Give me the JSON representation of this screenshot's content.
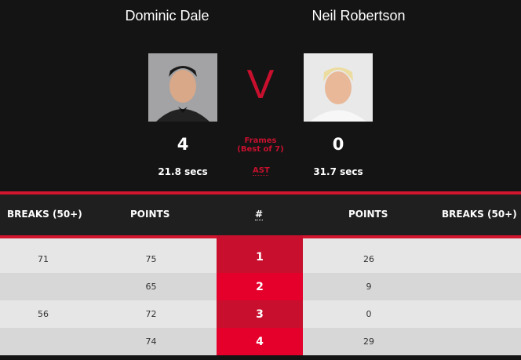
{
  "player1": {
    "name": "Dominic Dale",
    "score": "4",
    "avg_shot_time": "21.8 secs"
  },
  "player2": {
    "name": "Neil Robertson",
    "score": "0",
    "avg_shot_time": "31.7 secs"
  },
  "vs": "V",
  "frames_label": "Frames",
  "best_of": "(Best of 7)",
  "ast": "AST",
  "columns": [
    "BREAKS (50+)",
    "POINTS",
    "#",
    "POINTS",
    "BREAKS (50+)"
  ],
  "frames": [
    {
      "p1_breaks": "71",
      "p1_points": "75",
      "frame": "1",
      "p2_points": "26",
      "p2_breaks": ""
    },
    {
      "p1_breaks": "",
      "p1_points": "65",
      "frame": "2",
      "p2_points": "9",
      "p2_breaks": ""
    },
    {
      "p1_breaks": "56",
      "p1_points": "72",
      "frame": "3",
      "p2_points": "0",
      "p2_breaks": ""
    },
    {
      "p1_breaks": "",
      "p1_points": "74",
      "frame": "4",
      "p2_points": "29",
      "p2_breaks": ""
    }
  ],
  "colors": {
    "accent": "#c8102e",
    "accent_alt": "#e4002b",
    "row_light": "#e6e6e6",
    "row_dark": "#d7d7d7"
  }
}
